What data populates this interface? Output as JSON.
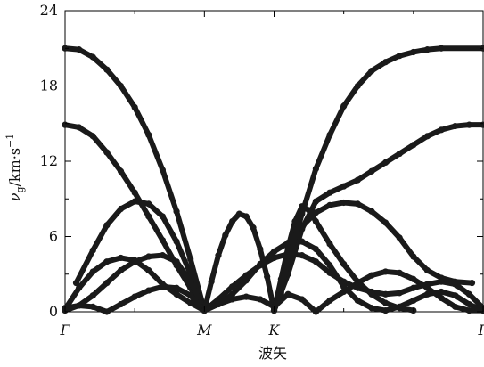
{
  "chart_data": {
    "type": "line",
    "title": "",
    "xlabel": "波矢",
    "ylabel": {
      "symbol": "ν",
      "subscript": "g",
      "unit": "/km·s",
      "exponent": "−1"
    },
    "ylim": [
      0,
      24
    ],
    "yticks": [
      0,
      6,
      12,
      18,
      24
    ],
    "xlim": [
      0,
      3
    ],
    "xticks": [
      {
        "x": 0,
        "label": "Γ"
      },
      {
        "x": 1,
        "label": "M"
      },
      {
        "x": 1.5,
        "label": "K"
      },
      {
        "x": 3,
        "label": "Γ"
      }
    ],
    "grid": false,
    "legend": "none",
    "series_color": "#1a1a1a",
    "series": [
      {
        "points": [
          [
            0,
            21.0
          ],
          [
            0.1,
            20.9
          ],
          [
            0.2,
            20.3
          ],
          [
            0.3,
            19.3
          ],
          [
            0.4,
            18.0
          ],
          [
            0.5,
            16.3
          ],
          [
            0.6,
            14.1
          ],
          [
            0.7,
            11.3
          ],
          [
            0.8,
            8.0
          ],
          [
            0.9,
            4.2
          ],
          [
            1.0,
            0.1
          ]
        ]
      },
      {
        "points": [
          [
            0,
            14.9
          ],
          [
            0.1,
            14.7
          ],
          [
            0.2,
            14.0
          ],
          [
            0.3,
            12.7
          ],
          [
            0.4,
            11.2
          ],
          [
            0.5,
            9.5
          ],
          [
            0.6,
            7.6
          ],
          [
            0.7,
            5.7
          ],
          [
            0.8,
            3.7
          ],
          [
            0.9,
            1.9
          ],
          [
            1.0,
            0.1
          ]
        ]
      },
      {
        "points": [
          [
            0.08,
            2.3
          ],
          [
            0.2,
            4.9
          ],
          [
            0.3,
            6.9
          ],
          [
            0.4,
            8.2
          ],
          [
            0.5,
            8.8
          ],
          [
            0.6,
            8.6
          ],
          [
            0.7,
            7.6
          ],
          [
            0.8,
            5.6
          ],
          [
            0.9,
            3.0
          ],
          [
            1.0,
            0.1
          ]
        ]
      },
      {
        "points": [
          [
            0,
            0.2
          ],
          [
            0.1,
            1.9
          ],
          [
            0.2,
            3.2
          ],
          [
            0.3,
            4.0
          ],
          [
            0.4,
            4.3
          ],
          [
            0.5,
            4.1
          ],
          [
            0.6,
            3.3
          ],
          [
            0.7,
            2.2
          ],
          [
            0.8,
            1.4
          ],
          [
            0.9,
            0.7
          ],
          [
            1.0,
            0.1
          ]
        ]
      },
      {
        "points": [
          [
            0,
            0.1
          ],
          [
            0.1,
            0.5
          ],
          [
            0.2,
            1.3
          ],
          [
            0.3,
            2.3
          ],
          [
            0.4,
            3.3
          ],
          [
            0.5,
            4.0
          ],
          [
            0.6,
            4.4
          ],
          [
            0.7,
            4.5
          ],
          [
            0.8,
            4.0
          ],
          [
            0.9,
            2.4
          ],
          [
            1.0,
            0.1
          ]
        ]
      },
      {
        "points": [
          [
            0,
            0.3
          ],
          [
            0.1,
            0.5
          ],
          [
            0.2,
            0.4
          ],
          [
            0.3,
            0.0
          ],
          [
            0.4,
            0.6
          ],
          [
            0.5,
            1.2
          ],
          [
            0.6,
            1.7
          ],
          [
            0.7,
            2.0
          ],
          [
            0.8,
            1.9
          ],
          [
            0.9,
            1.3
          ],
          [
            1.0,
            0.1
          ]
        ]
      },
      {
        "points": [
          [
            1.0,
            0.1
          ],
          [
            1.05,
            2.4
          ],
          [
            1.1,
            4.5
          ],
          [
            1.15,
            6.1
          ],
          [
            1.2,
            7.2
          ],
          [
            1.25,
            7.8
          ],
          [
            1.3,
            7.6
          ],
          [
            1.35,
            6.7
          ],
          [
            1.4,
            5.0
          ],
          [
            1.45,
            2.8
          ],
          [
            1.5,
            0.1
          ]
        ]
      },
      {
        "points": [
          [
            1.0,
            0.1
          ],
          [
            1.1,
            1.0
          ],
          [
            1.2,
            2.0
          ],
          [
            1.3,
            2.9
          ],
          [
            1.4,
            3.7
          ],
          [
            1.5,
            4.3
          ],
          [
            1.6,
            4.6
          ],
          [
            1.7,
            4.5
          ],
          [
            1.8,
            4.0
          ],
          [
            1.9,
            3.1
          ],
          [
            2.0,
            2.4
          ],
          [
            2.1,
            1.9
          ],
          [
            2.2,
            1.6
          ],
          [
            2.3,
            1.4
          ],
          [
            2.4,
            1.5
          ],
          [
            2.5,
            1.9
          ],
          [
            2.6,
            2.2
          ],
          [
            2.7,
            2.4
          ],
          [
            2.8,
            2.2
          ],
          [
            2.9,
            1.4
          ],
          [
            3.0,
            0.3
          ]
        ]
      },
      {
        "points": [
          [
            1.0,
            0.1
          ],
          [
            1.1,
            0.6
          ],
          [
            1.2,
            1.0
          ],
          [
            1.3,
            1.2
          ],
          [
            1.4,
            1.0
          ],
          [
            1.5,
            0.4
          ],
          [
            1.6,
            1.4
          ],
          [
            1.7,
            1.0
          ],
          [
            1.8,
            0.0
          ],
          [
            1.9,
            0.9
          ],
          [
            2.0,
            1.6
          ],
          [
            2.1,
            2.3
          ],
          [
            2.2,
            2.9
          ],
          [
            2.3,
            3.2
          ],
          [
            2.4,
            3.1
          ],
          [
            2.5,
            2.6
          ],
          [
            2.6,
            1.9
          ],
          [
            2.7,
            1.1
          ],
          [
            2.8,
            0.4
          ],
          [
            2.9,
            0.1
          ],
          [
            3.0,
            0.1
          ]
        ]
      },
      {
        "points": [
          [
            1.0,
            0.1
          ],
          [
            1.1,
            0.6
          ],
          [
            1.2,
            1.4
          ],
          [
            1.3,
            2.5
          ],
          [
            1.4,
            3.8
          ],
          [
            1.5,
            4.8
          ],
          [
            1.6,
            5.5
          ],
          [
            1.7,
            5.6
          ],
          [
            1.8,
            5.0
          ],
          [
            1.9,
            3.7
          ],
          [
            2.0,
            2.0
          ],
          [
            2.1,
            0.9
          ],
          [
            2.2,
            0.3
          ],
          [
            2.3,
            0.1
          ],
          [
            2.4,
            0.4
          ],
          [
            2.5,
            0.9
          ],
          [
            2.6,
            1.4
          ],
          [
            2.7,
            1.6
          ],
          [
            2.8,
            1.3
          ],
          [
            2.9,
            0.6
          ],
          [
            3.0,
            0.1
          ]
        ]
      },
      {
        "points": [
          [
            1.5,
            0.1
          ],
          [
            1.55,
            2.6
          ],
          [
            1.6,
            5.1
          ],
          [
            1.65,
            7.2
          ],
          [
            1.7,
            8.4
          ],
          [
            1.75,
            8.1
          ],
          [
            1.8,
            7.2
          ],
          [
            1.9,
            5.4
          ],
          [
            2.0,
            3.8
          ],
          [
            2.1,
            2.4
          ],
          [
            2.2,
            1.4
          ],
          [
            2.3,
            0.7
          ],
          [
            2.4,
            0.3
          ],
          [
            2.5,
            0.1
          ]
        ]
      },
      {
        "points": [
          [
            1.5,
            0.1
          ],
          [
            1.55,
            1.5
          ],
          [
            1.6,
            3.5
          ],
          [
            1.65,
            5.4
          ],
          [
            1.7,
            6.8
          ],
          [
            1.8,
            7.9
          ],
          [
            1.9,
            8.5
          ],
          [
            2.0,
            8.7
          ],
          [
            2.1,
            8.6
          ],
          [
            2.2,
            8.0
          ],
          [
            2.3,
            7.1
          ],
          [
            2.4,
            5.9
          ],
          [
            2.5,
            4.4
          ],
          [
            2.6,
            3.3
          ],
          [
            2.7,
            2.7
          ],
          [
            2.8,
            2.4
          ],
          [
            2.92,
            2.3
          ]
        ]
      },
      {
        "points": [
          [
            1.5,
            0.1
          ],
          [
            1.6,
            3.0
          ],
          [
            1.7,
            6.6
          ],
          [
            1.8,
            8.8
          ],
          [
            1.9,
            9.5
          ],
          [
            2.0,
            10.0
          ],
          [
            2.1,
            10.5
          ],
          [
            2.2,
            11.2
          ],
          [
            2.3,
            11.9
          ],
          [
            2.4,
            12.6
          ],
          [
            2.5,
            13.3
          ],
          [
            2.6,
            14.0
          ],
          [
            2.7,
            14.5
          ],
          [
            2.8,
            14.8
          ],
          [
            2.9,
            14.9
          ],
          [
            3.0,
            14.9
          ]
        ]
      },
      {
        "points": [
          [
            1.5,
            0.1
          ],
          [
            1.6,
            4.0
          ],
          [
            1.7,
            7.8
          ],
          [
            1.8,
            11.4
          ],
          [
            1.9,
            14.1
          ],
          [
            2.0,
            16.4
          ],
          [
            2.1,
            18.0
          ],
          [
            2.2,
            19.2
          ],
          [
            2.3,
            19.9
          ],
          [
            2.4,
            20.4
          ],
          [
            2.5,
            20.7
          ],
          [
            2.6,
            20.9
          ],
          [
            2.7,
            21.0
          ],
          [
            3.0,
            21.0
          ]
        ]
      }
    ]
  }
}
